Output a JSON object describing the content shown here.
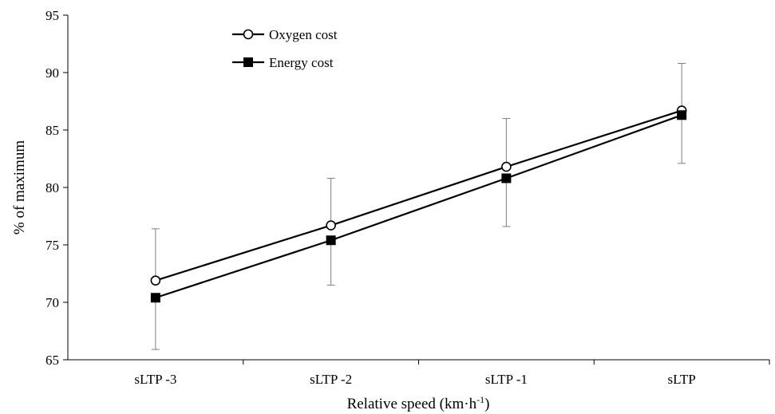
{
  "chart_data": {
    "type": "line",
    "title": "",
    "xlabel": "Relative speed (km·h",
    "xlabel_sup": "-1",
    "xlabel_close": ")",
    "ylabel": "% of maximum",
    "ylim": [
      65,
      95
    ],
    "yticks": [
      65,
      70,
      75,
      80,
      85,
      90,
      95
    ],
    "categories": [
      "sLTP -3",
      "sLTP -2",
      "sLTP -1",
      "sLTP"
    ],
    "grid": false,
    "legend": "top-left",
    "series": [
      {
        "name": "Oxygen cost",
        "marker": "open-circle",
        "values": [
          71.9,
          76.7,
          81.8,
          86.7
        ],
        "error_upper": [
          76.4,
          80.8,
          86.0,
          90.8
        ],
        "error_lower": [
          null,
          null,
          null,
          null
        ]
      },
      {
        "name": "Energy cost",
        "marker": "filled-square",
        "values": [
          70.4,
          75.4,
          80.8,
          86.3
        ],
        "error_upper": [
          null,
          null,
          null,
          null
        ],
        "error_lower": [
          65.9,
          71.5,
          76.6,
          82.1
        ]
      }
    ],
    "colors": {
      "line": "#000000",
      "errorbar": "#7f7f7f"
    }
  }
}
